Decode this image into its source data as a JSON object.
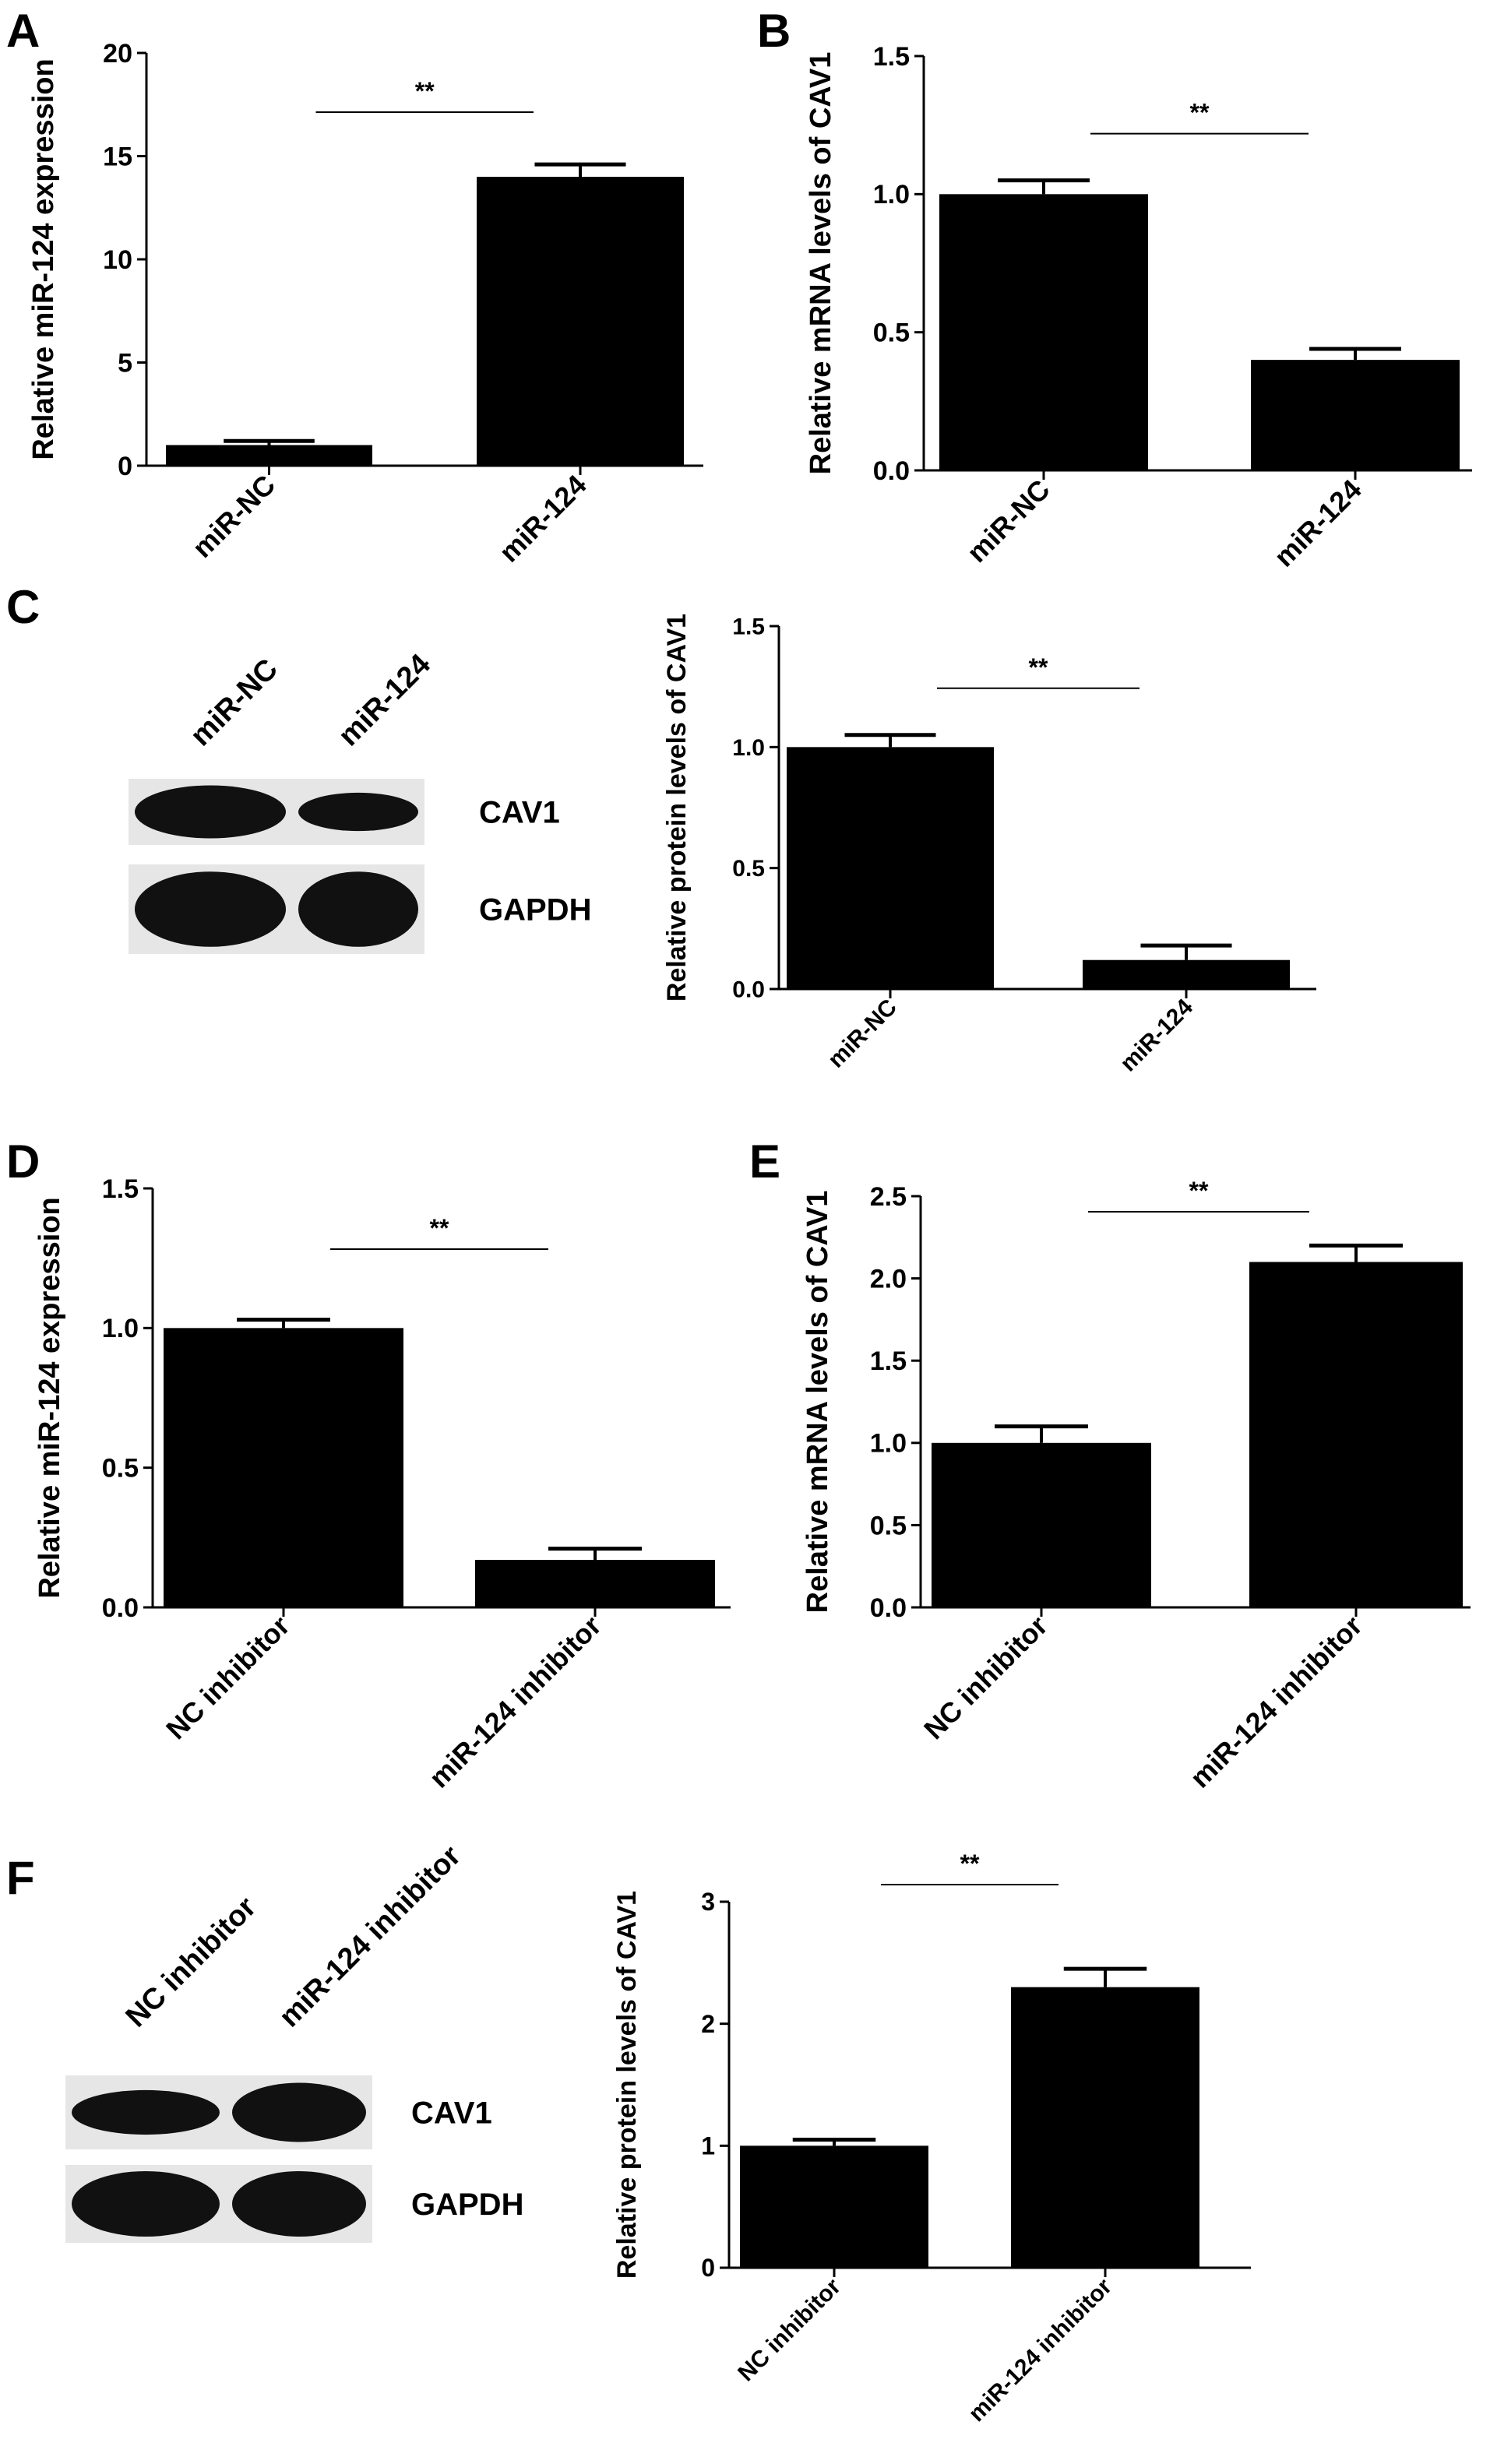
{
  "panels": [
    {
      "letter": "A",
      "blot": null
    },
    {
      "letter": "B",
      "blot": null
    },
    {
      "letter": "C",
      "blot": {
        "lanes": [
          "miR-NC",
          "miR-124"
        ],
        "bands": [
          "CAV1",
          "GAPDH"
        ],
        "cav1_intensity": [
          1.0,
          0.5
        ]
      }
    },
    {
      "letter": "D",
      "blot": null
    },
    {
      "letter": "E",
      "blot": null
    },
    {
      "letter": "F",
      "blot": {
        "lanes": [
          "NC inhibitor",
          "miR-124 inhibitor"
        ],
        "bands": [
          "CAV1",
          "GAPDH"
        ],
        "cav1_intensity": [
          0.55,
          1.0
        ]
      }
    }
  ],
  "chart_data": [
    {
      "panel": "A",
      "type": "bar",
      "categories": [
        "miR-NC",
        "miR-124"
      ],
      "values": [
        1.0,
        14.0
      ],
      "errors": [
        0.2,
        0.6
      ],
      "ylabel": "Relative miR-124 expression",
      "ylim": [
        0,
        20
      ],
      "yticks": [
        "0",
        "5",
        "10",
        "15",
        "20"
      ],
      "significance": "**"
    },
    {
      "panel": "B",
      "type": "bar",
      "categories": [
        "miR-NC",
        "miR-124"
      ],
      "values": [
        1.0,
        0.4
      ],
      "errors": [
        0.05,
        0.04
      ],
      "ylabel": "Relative mRNA levels of CAV1",
      "ylim": [
        0,
        1.5
      ],
      "yticks": [
        "0.0",
        "0.5",
        "1.0",
        "1.5"
      ],
      "significance": "**"
    },
    {
      "panel": "C",
      "type": "bar",
      "categories": [
        "miR-NC",
        "miR-124"
      ],
      "values": [
        1.0,
        0.12
      ],
      "errors": [
        0.05,
        0.06
      ],
      "ylabel": "Relative protein levels of CAV1",
      "ylim": [
        0,
        1.5
      ],
      "yticks": [
        "0.0",
        "0.5",
        "1.0",
        "1.5"
      ],
      "significance": "**"
    },
    {
      "panel": "D",
      "type": "bar",
      "categories": [
        "NC inhibitor",
        "miR-124 inhibitor"
      ],
      "values": [
        1.0,
        0.17
      ],
      "errors": [
        0.03,
        0.04
      ],
      "ylabel": "Relative miR-124 expression",
      "ylim": [
        0,
        1.5
      ],
      "yticks": [
        "0.0",
        "0.5",
        "1.0",
        "1.5"
      ],
      "significance": "**"
    },
    {
      "panel": "E",
      "type": "bar",
      "categories": [
        "NC inhibitor",
        "miR-124 inhibitor"
      ],
      "values": [
        1.0,
        2.1
      ],
      "errors": [
        0.1,
        0.1
      ],
      "ylabel": "Relative mRNA levels of CAV1",
      "ylim": [
        0,
        2.5
      ],
      "yticks": [
        "0.0",
        "0.5",
        "1.0",
        "1.5",
        "2.0",
        "2.5"
      ],
      "significance": "**"
    },
    {
      "panel": "F",
      "type": "bar",
      "categories": [
        "NC inhibitor",
        "miR-124 inhibitor"
      ],
      "values": [
        1.0,
        2.3
      ],
      "errors": [
        0.05,
        0.15
      ],
      "ylabel": "Relative protein levels of CAV1",
      "ylim": [
        0,
        3
      ],
      "yticks": [
        "0",
        "1",
        "2",
        "3"
      ],
      "significance": "**"
    }
  ]
}
